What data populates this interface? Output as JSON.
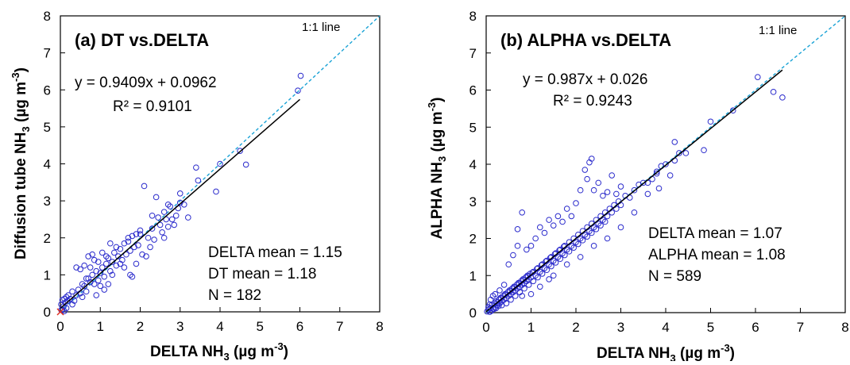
{
  "colors": {
    "points": "#2b2bcc",
    "fit_line": "#000000",
    "one_to_one": "#1aa3d6",
    "origin_marker": "#e03020"
  },
  "chart_data": [
    {
      "type": "scatter",
      "panel_title": "(a) DT vs.DELTA",
      "equation": "y = 0.9409x + 0.0962",
      "r2": "R² = 0.9101",
      "line_label": "1:1 line",
      "xlabel": {
        "main": "DELTA NH",
        "sub": "3",
        "unit": " (µg m",
        "sup": "-3",
        "end": ")"
      },
      "ylabel": {
        "main": "Diffusion tube NH",
        "sub": "3",
        "unit": " (µg m",
        "sup": "-3",
        "end": ")"
      },
      "xlim": [
        0,
        8
      ],
      "ylim": [
        0,
        8
      ],
      "xticks": [
        "0",
        "1",
        "2",
        "3",
        "4",
        "5",
        "6",
        "7",
        "8"
      ],
      "yticks": [
        "0",
        "1",
        "2",
        "3",
        "4",
        "5",
        "6",
        "7",
        "8"
      ],
      "fit": {
        "slope": 0.9409,
        "intercept": 0.0962,
        "x_range": [
          0,
          6.0
        ]
      },
      "stats": [
        "DELTA mean = 1.15",
        "DT mean =  1.18",
        "N = 182"
      ],
      "points": [
        [
          0.02,
          0.2
        ],
        [
          0.05,
          0.32
        ],
        [
          0.08,
          0.15
        ],
        [
          0.1,
          0.35
        ],
        [
          0.12,
          0.25
        ],
        [
          0.15,
          0.4
        ],
        [
          0.18,
          0.3
        ],
        [
          0.2,
          0.45
        ],
        [
          0.05,
          0.05
        ],
        [
          0.1,
          0.02
        ],
        [
          0.25,
          0.35
        ],
        [
          0.3,
          0.55
        ],
        [
          0.35,
          0.3
        ],
        [
          0.4,
          0.45
        ],
        [
          0.45,
          0.6
        ],
        [
          0.5,
          0.5
        ],
        [
          0.55,
          0.75
        ],
        [
          0.6,
          0.7
        ],
        [
          0.65,
          0.55
        ],
        [
          0.7,
          0.9
        ],
        [
          0.75,
          0.8
        ],
        [
          0.8,
          1.0
        ],
        [
          0.85,
          0.75
        ],
        [
          0.9,
          1.1
        ],
        [
          0.95,
          0.85
        ],
        [
          1.0,
          1.05
        ],
        [
          0.7,
          1.5
        ],
        [
          0.8,
          1.55
        ],
        [
          0.85,
          1.4
        ],
        [
          0.6,
          1.25
        ],
        [
          0.5,
          1.15
        ],
        [
          0.4,
          1.2
        ],
        [
          1.05,
          1.2
        ],
        [
          1.1,
          0.95
        ],
        [
          1.15,
          1.3
        ],
        [
          1.2,
          1.45
        ],
        [
          1.25,
          1.1
        ],
        [
          1.3,
          1.35
        ],
        [
          1.35,
          1.6
        ],
        [
          1.4,
          1.25
        ],
        [
          1.45,
          1.5
        ],
        [
          1.5,
          1.7
        ],
        [
          1.55,
          1.4
        ],
        [
          1.6,
          1.85
        ],
        [
          1.65,
          1.55
        ],
        [
          1.7,
          1.9
        ],
        [
          1.75,
          1.65
        ],
        [
          1.8,
          2.05
        ],
        [
          1.85,
          1.75
        ],
        [
          1.9,
          2.1
        ],
        [
          1.95,
          1.8
        ],
        [
          2.0,
          2.2
        ],
        [
          1.0,
          0.7
        ],
        [
          1.1,
          0.6
        ],
        [
          1.2,
          0.75
        ],
        [
          0.9,
          0.45
        ],
        [
          1.3,
          1.0
        ],
        [
          1.6,
          1.2
        ],
        [
          1.75,
          1.0
        ],
        [
          1.8,
          0.95
        ],
        [
          1.9,
          1.3
        ],
        [
          2.05,
          1.55
        ],
        [
          2.1,
          3.4
        ],
        [
          2.2,
          2.0
        ],
        [
          2.25,
          1.75
        ],
        [
          2.3,
          2.25
        ],
        [
          2.35,
          1.95
        ],
        [
          2.4,
          3.1
        ],
        [
          2.45,
          2.55
        ],
        [
          2.5,
          2.35
        ],
        [
          2.55,
          2.15
        ],
        [
          2.6,
          2.7
        ],
        [
          2.65,
          2.5
        ],
        [
          2.7,
          2.3
        ],
        [
          2.75,
          2.85
        ],
        [
          2.8,
          2.5
        ],
        [
          2.85,
          2.35
        ],
        [
          2.9,
          2.6
        ],
        [
          2.95,
          2.8
        ],
        [
          3.0,
          3.2
        ],
        [
          3.1,
          2.9
        ],
        [
          3.2,
          2.55
        ],
        [
          3.4,
          3.9
        ],
        [
          3.45,
          3.55
        ],
        [
          3.9,
          3.25
        ],
        [
          4.0,
          4.0
        ],
        [
          4.5,
          4.35
        ],
        [
          4.65,
          3.98
        ],
        [
          5.95,
          5.98
        ],
        [
          6.02,
          6.38
        ],
        [
          0.02,
          0.05
        ],
        [
          0.15,
          0.1
        ],
        [
          0.3,
          0.2
        ],
        [
          0.55,
          0.4
        ],
        [
          0.65,
          0.9
        ],
        [
          0.75,
          1.2
        ],
        [
          0.95,
          1.35
        ],
        [
          1.05,
          1.6
        ],
        [
          1.15,
          1.5
        ],
        [
          1.25,
          1.85
        ],
        [
          1.4,
          1.75
        ],
        [
          1.5,
          1.3
        ],
        [
          1.7,
          2.0
        ],
        [
          2.0,
          2.1
        ],
        [
          2.15,
          1.5
        ],
        [
          2.3,
          2.6
        ],
        [
          2.6,
          2.0
        ],
        [
          2.7,
          2.9
        ],
        [
          3.0,
          2.95
        ]
      ]
    },
    {
      "type": "scatter",
      "panel_title": "(b) ALPHA vs.DELTA",
      "equation": "y = 0.987x + 0.026",
      "r2": "R² = 0.9243",
      "line_label": "1:1 line",
      "xlabel": {
        "main": "DELTA NH",
        "sub": "3",
        "unit": " (µg m",
        "sup": "-3",
        "end": ")"
      },
      "ylabel": {
        "main": "ALPHA NH",
        "sub": "3",
        "unit": " (µg m",
        "sup": "-3",
        "end": ")"
      },
      "xlim": [
        0,
        8
      ],
      "ylim": [
        0,
        8
      ],
      "xticks": [
        "0",
        "1",
        "2",
        "3",
        "4",
        "5",
        "6",
        "7",
        "8"
      ],
      "yticks": [
        "0",
        "1",
        "2",
        "3",
        "4",
        "5",
        "6",
        "7",
        "8"
      ],
      "fit": {
        "slope": 0.987,
        "intercept": 0.026,
        "x_range": [
          0,
          6.6
        ]
      },
      "stats": [
        "DELTA mean = 1.07",
        "ALPHA mean =  1.08",
        "N = 589"
      ],
      "points": [
        [
          0.02,
          0.03
        ],
        [
          0.05,
          0.08
        ],
        [
          0.08,
          0.02
        ],
        [
          0.1,
          0.12
        ],
        [
          0.12,
          0.2
        ],
        [
          0.15,
          0.1
        ],
        [
          0.18,
          0.25
        ],
        [
          0.2,
          0.15
        ],
        [
          0.22,
          0.3
        ],
        [
          0.25,
          0.2
        ],
        [
          0.28,
          0.35
        ],
        [
          0.3,
          0.25
        ],
        [
          0.32,
          0.4
        ],
        [
          0.35,
          0.3
        ],
        [
          0.38,
          0.45
        ],
        [
          0.4,
          0.35
        ],
        [
          0.42,
          0.5
        ],
        [
          0.45,
          0.4
        ],
        [
          0.48,
          0.55
        ],
        [
          0.5,
          0.45
        ],
        [
          0.52,
          0.6
        ],
        [
          0.55,
          0.5
        ],
        [
          0.58,
          0.65
        ],
        [
          0.6,
          0.55
        ],
        [
          0.62,
          0.7
        ],
        [
          0.65,
          0.6
        ],
        [
          0.68,
          0.75
        ],
        [
          0.7,
          0.65
        ],
        [
          0.72,
          0.8
        ],
        [
          0.75,
          0.7
        ],
        [
          0.78,
          0.85
        ],
        [
          0.8,
          0.75
        ],
        [
          0.82,
          0.9
        ],
        [
          0.85,
          0.8
        ],
        [
          0.88,
          0.95
        ],
        [
          0.9,
          0.85
        ],
        [
          0.92,
          1.0
        ],
        [
          0.95,
          0.9
        ],
        [
          0.98,
          1.05
        ],
        [
          1.0,
          0.95
        ],
        [
          1.05,
          1.1
        ],
        [
          1.1,
          1.0
        ],
        [
          1.15,
          1.2
        ],
        [
          1.2,
          1.1
        ],
        [
          1.25,
          1.3
        ],
        [
          1.3,
          1.2
        ],
        [
          1.35,
          1.4
        ],
        [
          1.4,
          1.3
        ],
        [
          1.45,
          1.5
        ],
        [
          1.5,
          1.4
        ],
        [
          1.55,
          1.6
        ],
        [
          1.6,
          1.5
        ],
        [
          1.65,
          1.7
        ],
        [
          1.7,
          1.6
        ],
        [
          1.75,
          1.8
        ],
        [
          1.8,
          1.7
        ],
        [
          1.85,
          1.9
        ],
        [
          1.9,
          1.8
        ],
        [
          1.95,
          2.0
        ],
        [
          2.0,
          1.9
        ],
        [
          2.05,
          2.1
        ],
        [
          2.1,
          2.0
        ],
        [
          2.15,
          2.2
        ],
        [
          2.2,
          2.1
        ],
        [
          2.25,
          2.3
        ],
        [
          2.3,
          2.2
        ],
        [
          2.35,
          2.4
        ],
        [
          2.4,
          2.3
        ],
        [
          2.45,
          2.5
        ],
        [
          2.5,
          2.4
        ],
        [
          2.55,
          2.6
        ],
        [
          2.6,
          2.5
        ],
        [
          2.65,
          2.7
        ],
        [
          2.7,
          2.6
        ],
        [
          2.75,
          2.8
        ],
        [
          2.8,
          2.7
        ],
        [
          2.85,
          2.9
        ],
        [
          2.9,
          2.8
        ],
        [
          2.95,
          3.0
        ],
        [
          3.0,
          2.9
        ],
        [
          3.1,
          3.15
        ],
        [
          3.2,
          3.1
        ],
        [
          3.3,
          3.3
        ],
        [
          3.4,
          3.45
        ],
        [
          3.5,
          3.5
        ],
        [
          3.6,
          3.5
        ],
        [
          3.7,
          3.6
        ],
        [
          3.8,
          3.8
        ],
        [
          3.9,
          3.95
        ],
        [
          4.0,
          4.0
        ],
        [
          4.2,
          4.1
        ],
        [
          4.3,
          4.3
        ],
        [
          4.45,
          4.3
        ],
        [
          4.85,
          4.38
        ],
        [
          5.0,
          5.15
        ],
        [
          5.5,
          5.45
        ],
        [
          6.05,
          6.35
        ],
        [
          6.4,
          5.95
        ],
        [
          6.6,
          5.8
        ],
        [
          0.5,
          1.3
        ],
        [
          0.6,
          1.55
        ],
        [
          0.7,
          2.25
        ],
        [
          0.8,
          2.7
        ],
        [
          0.7,
          1.8
        ],
        [
          0.9,
          1.7
        ],
        [
          1.0,
          1.8
        ],
        [
          1.1,
          2.0
        ],
        [
          1.2,
          2.3
        ],
        [
          1.3,
          2.15
        ],
        [
          1.4,
          2.5
        ],
        [
          1.5,
          2.35
        ],
        [
          1.6,
          2.6
        ],
        [
          1.7,
          2.45
        ],
        [
          1.8,
          2.8
        ],
        [
          1.9,
          2.6
        ],
        [
          2.0,
          2.95
        ],
        [
          2.1,
          3.3
        ],
        [
          2.2,
          3.85
        ],
        [
          2.3,
          4.05
        ],
        [
          2.35,
          4.15
        ],
        [
          2.25,
          3.6
        ],
        [
          2.4,
          3.3
        ],
        [
          2.5,
          3.5
        ],
        [
          2.6,
          3.15
        ],
        [
          2.7,
          3.25
        ],
        [
          2.8,
          3.7
        ],
        [
          2.9,
          3.2
        ],
        [
          3.0,
          3.4
        ],
        [
          3.8,
          3.75
        ],
        [
          4.1,
          3.7
        ],
        [
          4.2,
          4.6
        ],
        [
          3.85,
          3.35
        ],
        [
          1.2,
          0.7
        ],
        [
          1.5,
          1.0
        ],
        [
          1.8,
          1.3
        ],
        [
          2.1,
          1.5
        ],
        [
          2.4,
          1.8
        ],
        [
          2.7,
          2.0
        ],
        [
          3.0,
          2.3
        ],
        [
          3.3,
          2.7
        ],
        [
          3.6,
          3.2
        ],
        [
          1.0,
          0.5
        ],
        [
          0.8,
          0.45
        ],
        [
          1.4,
          0.9
        ],
        [
          0.3,
          0.6
        ],
        [
          0.4,
          0.75
        ],
        [
          0.2,
          0.5
        ],
        [
          0.15,
          0.45
        ],
        [
          0.1,
          0.35
        ],
        [
          0.35,
          0.2
        ],
        [
          0.45,
          0.25
        ],
        [
          0.55,
          0.35
        ],
        [
          0.65,
          0.45
        ],
        [
          0.75,
          0.55
        ],
        [
          0.85,
          0.65
        ],
        [
          0.95,
          0.75
        ],
        [
          1.05,
          0.85
        ],
        [
          1.15,
          0.95
        ],
        [
          1.25,
          1.05
        ],
        [
          1.35,
          1.15
        ],
        [
          1.45,
          1.25
        ],
        [
          1.55,
          1.35
        ],
        [
          1.65,
          1.45
        ],
        [
          1.75,
          1.55
        ],
        [
          1.85,
          1.65
        ],
        [
          1.95,
          1.75
        ],
        [
          2.05,
          1.85
        ],
        [
          2.15,
          1.95
        ],
        [
          2.25,
          2.05
        ],
        [
          2.35,
          2.15
        ],
        [
          2.45,
          2.25
        ],
        [
          2.55,
          2.35
        ],
        [
          2.65,
          2.45
        ],
        [
          0.25,
          0.28
        ],
        [
          0.33,
          0.38
        ],
        [
          0.43,
          0.48
        ],
        [
          0.53,
          0.58
        ],
        [
          0.63,
          0.68
        ],
        [
          0.73,
          0.78
        ],
        [
          0.83,
          0.88
        ],
        [
          0.93,
          0.98
        ],
        [
          1.03,
          1.08
        ],
        [
          1.13,
          1.18
        ],
        [
          1.23,
          1.28
        ],
        [
          1.33,
          1.38
        ],
        [
          1.43,
          1.48
        ],
        [
          1.53,
          1.58
        ],
        [
          1.63,
          1.68
        ],
        [
          1.73,
          1.78
        ],
        [
          0.05,
          0.15
        ],
        [
          0.08,
          0.22
        ],
        [
          0.12,
          0.05
        ],
        [
          0.18,
          0.1
        ],
        [
          0.22,
          0.12
        ],
        [
          0.28,
          0.18
        ]
      ]
    }
  ]
}
